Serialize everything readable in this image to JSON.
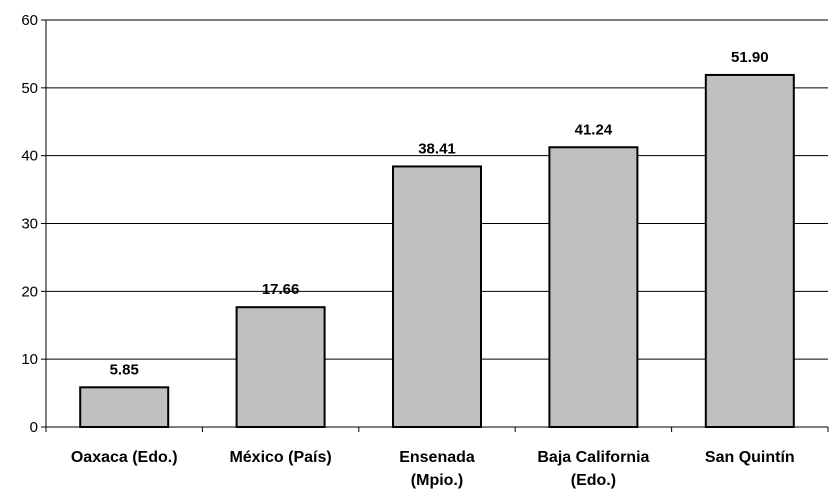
{
  "chart_data": {
    "type": "bar",
    "categories": [
      [
        "Oaxaca (Edo.)"
      ],
      [
        "México (País)"
      ],
      [
        "Ensenada",
        "(Mpio.)"
      ],
      [
        "Baja California",
        "(Edo.)"
      ],
      [
        "San Quintín"
      ]
    ],
    "values": [
      5.85,
      17.66,
      38.41,
      41.24,
      51.9
    ],
    "data_labels": [
      "5.85",
      "17.66",
      "38.41",
      "41.24",
      "51.90"
    ],
    "yticks": [
      0,
      10,
      20,
      30,
      40,
      50,
      60
    ],
    "ylim": [
      0,
      60
    ],
    "grid": true,
    "legend": "none",
    "bar_color": "#c0c0c0",
    "edge_color": "#000000"
  }
}
